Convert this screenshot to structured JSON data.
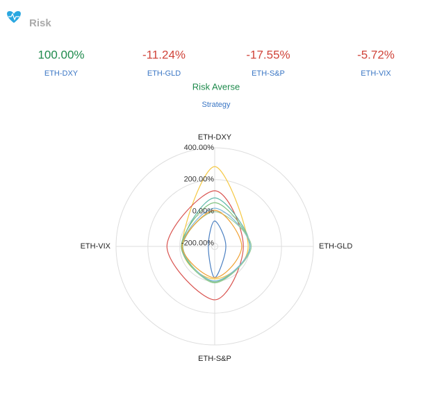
{
  "header": {
    "title": "Risk"
  },
  "stats": [
    {
      "value": "100.00%",
      "label": "ETH-DXY"
    },
    {
      "value": "-11.24%",
      "label": "ETH-GLD"
    },
    {
      "value": "-17.55%",
      "label": "ETH-S&P"
    },
    {
      "value": "-5.72%",
      "label": "ETH-VIX"
    }
  ],
  "strategy": {
    "value": "Risk Averse",
    "label": "Strategy"
  },
  "chart_data": {
    "type": "radar",
    "categories": [
      "ETH-DXY",
      "ETH-GLD",
      "ETH-S&P",
      "ETH-VIX"
    ],
    "rlim": [
      -220,
      400
    ],
    "rticks": [
      {
        "value": -200,
        "label": "-200.00%"
      },
      {
        "value": 0,
        "label": "0.00%"
      },
      {
        "value": 200,
        "label": "200.00%"
      },
      {
        "value": 400,
        "label": "400.00%"
      }
    ],
    "series": [
      {
        "color": "#f5c842",
        "values": [
          282,
          -10,
          -15,
          -15
        ]
      },
      {
        "color": "#d9534f",
        "values": [
          130,
          -40,
          116,
          80
        ]
      },
      {
        "color": "#4a7fc1",
        "values": [
          -60,
          -150,
          -23,
          -180
        ]
      },
      {
        "color": "#5cb8a8",
        "values": [
          85,
          3,
          -2,
          -15
        ]
      },
      {
        "color": "#7ec27e",
        "values": [
          55,
          0,
          5,
          -10
        ]
      },
      {
        "color": "#7ab8d9",
        "values": [
          20,
          3,
          -2,
          -15
        ]
      },
      {
        "color": "#9ccfa0",
        "values": [
          -2,
          10,
          10,
          -20
        ]
      },
      {
        "color": "#f0a030",
        "values": [
          7,
          -50,
          -23,
          -15
        ]
      }
    ]
  }
}
